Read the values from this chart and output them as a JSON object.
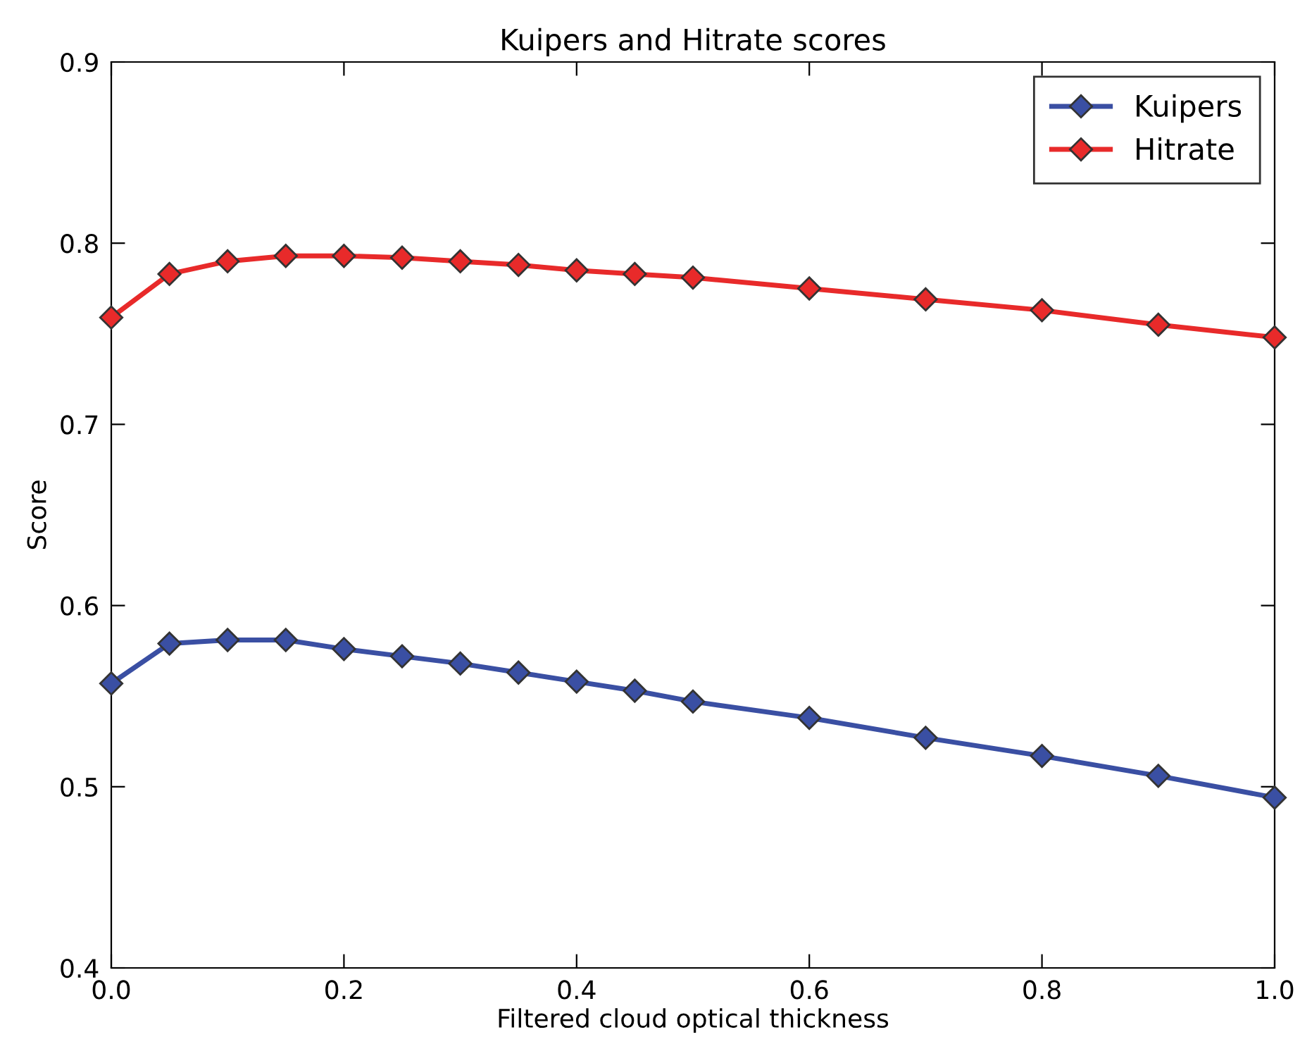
{
  "chart_data": {
    "type": "line",
    "title": "Kuipers and Hitrate scores",
    "xlabel": "Filtered cloud optical thickness",
    "ylabel": "Score",
    "x": [
      0,
      0.05,
      0.1,
      0.15,
      0.2,
      0.25,
      0.3,
      0.35,
      0.4,
      0.45,
      0.5,
      0.6,
      0.7,
      0.8,
      0.9,
      1.0
    ],
    "series": [
      {
        "name": "Kuipers",
        "color": "#3a4fa3",
        "values": [
          0.557,
          0.579,
          0.581,
          0.581,
          0.576,
          0.572,
          0.568,
          0.563,
          0.558,
          0.553,
          0.547,
          0.538,
          0.527,
          0.517,
          0.506,
          0.494
        ]
      },
      {
        "name": "Hitrate",
        "color": "#e82a2a",
        "values": [
          0.759,
          0.783,
          0.79,
          0.793,
          0.793,
          0.792,
          0.79,
          0.788,
          0.785,
          0.783,
          0.781,
          0.775,
          0.769,
          0.763,
          0.755,
          0.748
        ]
      }
    ],
    "xlim": [
      0,
      1.0
    ],
    "ylim": [
      0.4,
      0.9
    ],
    "xticks": [
      {
        "value": 0,
        "label": "0.0"
      },
      0.2,
      0.4,
      0.6,
      0.8,
      {
        "value": 1.0,
        "label": "1.0"
      }
    ],
    "yticks": [
      0.4,
      0.5,
      0.6,
      0.7,
      0.8,
      0.9
    ],
    "marker": "diamond",
    "line_style": "solid",
    "grid": false,
    "legend": "top right"
  }
}
